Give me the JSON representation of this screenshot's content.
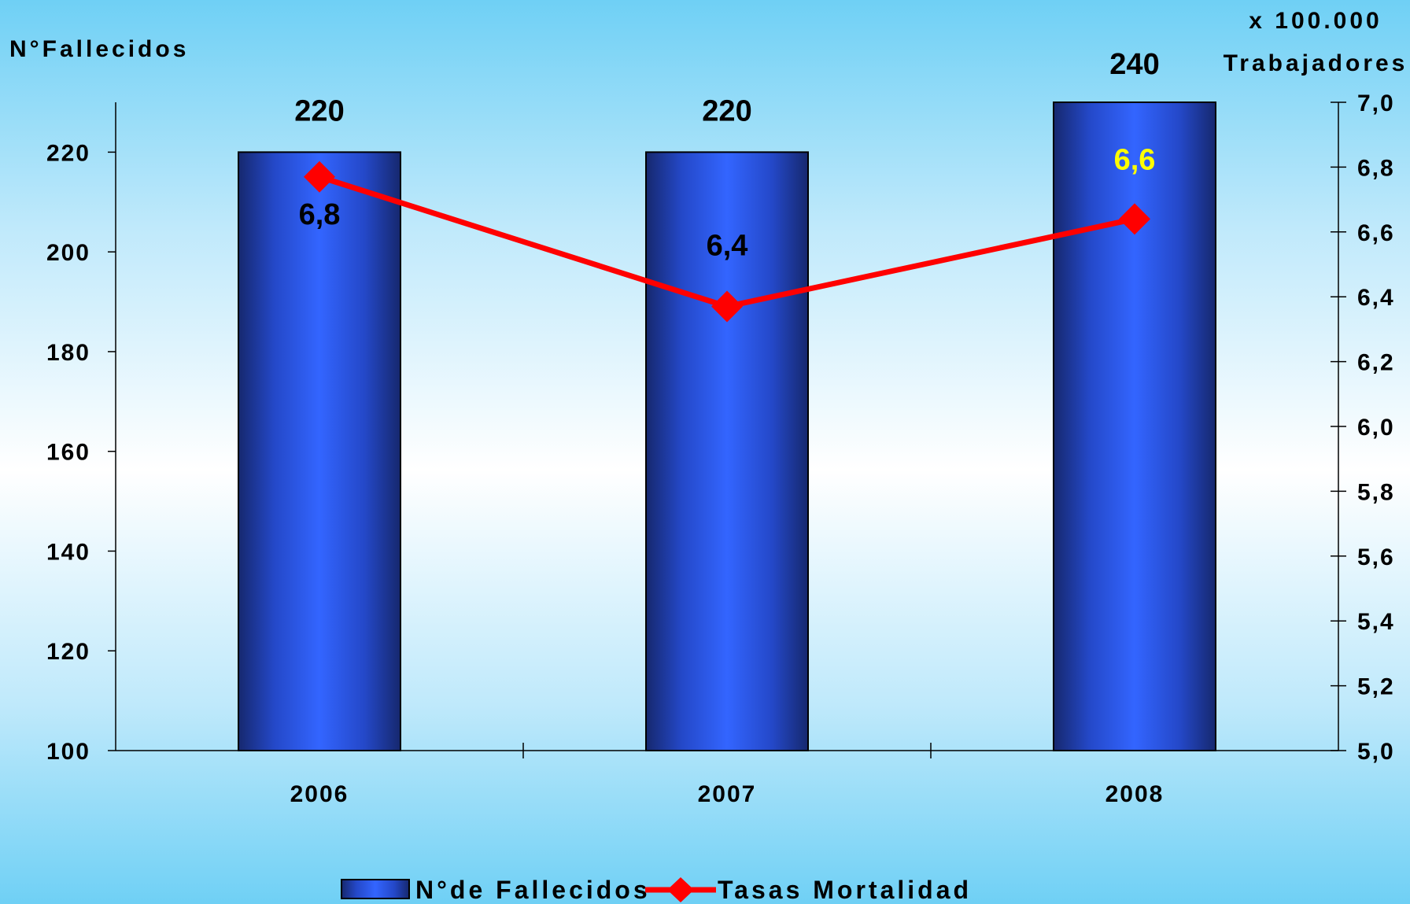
{
  "chart_data": {
    "type": "bar",
    "categories": [
      "2006",
      "2007",
      "2008"
    ],
    "series": [
      {
        "name": "N°de Fallecidos",
        "kind": "bar",
        "axis": "left",
        "values": [
          220,
          220,
          240
        ],
        "value_labels": [
          "220",
          "220",
          "240"
        ],
        "color": "#2f5ef5"
      },
      {
        "name": "Tasas Mortalidad",
        "kind": "line",
        "axis": "right",
        "marker": "diamond",
        "values": [
          6.77,
          6.37,
          6.64
        ],
        "value_labels": [
          "6,8",
          "6,4",
          "6,6"
        ],
        "value_label_colors": [
          "#000000",
          "#000000",
          "#ffff00"
        ],
        "color": "#ff0000"
      }
    ],
    "left_axis": {
      "title": "N°Fallecidos",
      "ylim": [
        100,
        230
      ],
      "ticks": [
        100,
        120,
        140,
        160,
        180,
        200,
        220
      ],
      "tick_labels": [
        "100",
        "120",
        "140",
        "160",
        "180",
        "200",
        "220"
      ]
    },
    "right_axis": {
      "title_line1": "x 100.000",
      "title_line2": "Trabajadores",
      "ylim": [
        5.0,
        7.0
      ],
      "ticks": [
        5.0,
        5.2,
        5.4,
        5.6,
        5.8,
        6.0,
        6.2,
        6.4,
        6.6,
        6.8,
        7.0
      ],
      "tick_labels": [
        "5,0",
        "5,2",
        "5,4",
        "5,6",
        "5,8",
        "6,0",
        "6,2",
        "6,4",
        "6,6",
        "6,8",
        "7,0"
      ]
    },
    "legend": {
      "position": "bottom",
      "items": [
        "N°de Fallecidos",
        "Tasas Mortalidad"
      ]
    },
    "grid": false
  }
}
